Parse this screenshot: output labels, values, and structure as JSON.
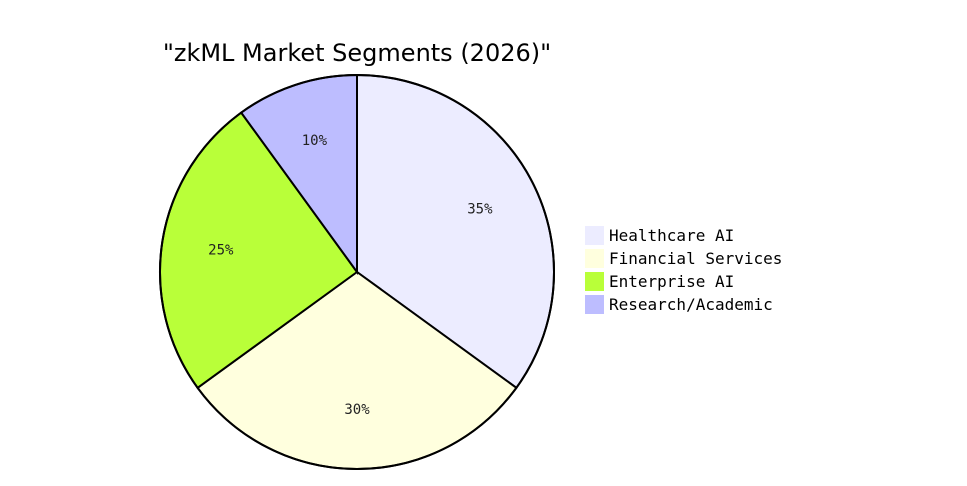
{
  "chart_data": {
    "type": "pie",
    "title": "\"zkML Market Segments (2026)\"",
    "slices": [
      {
        "label": "Healthcare AI",
        "value": 35,
        "display": "35%",
        "color": "#ECECFF"
      },
      {
        "label": "Financial Services",
        "value": 30,
        "display": "30%",
        "color": "#FFFFDE"
      },
      {
        "label": "Enterprise AI",
        "value": 25,
        "display": "25%",
        "color": "#B9FF39"
      },
      {
        "label": "Research/Academic",
        "value": 10,
        "display": "10%",
        "color": "#BDBDFF"
      }
    ],
    "legend_position": "right"
  }
}
